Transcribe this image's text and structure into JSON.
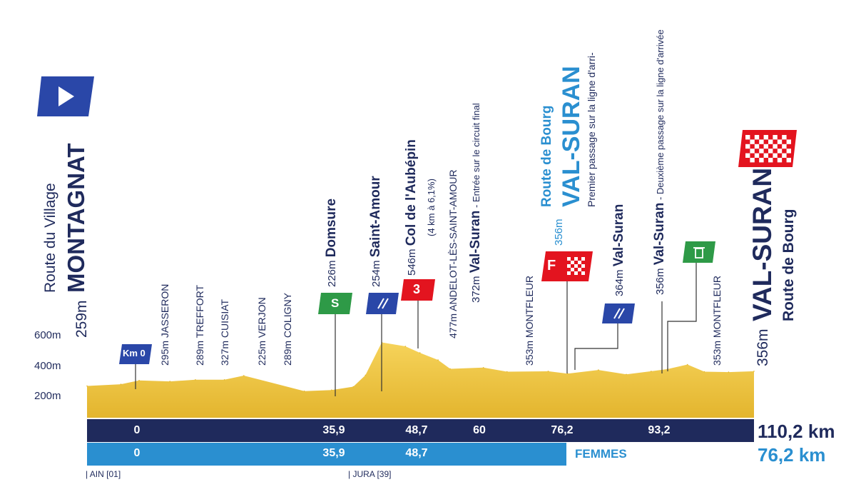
{
  "start": {
    "street": "Route du Village",
    "town": "MONTAGNAT",
    "altitude": "259m"
  },
  "finish": {
    "street": "Route de Bourg",
    "town": "VAL-SURAN",
    "altitude": "356m"
  },
  "axis": {
    "y_ticks": [
      "600m",
      "400m",
      "200m"
    ]
  },
  "km0_badge": "Km 0",
  "sprint_badge": "S",
  "kom_badge": "3",
  "feed_badge": "F",
  "points": [
    {
      "alt": "295m",
      "name": "JASSERON"
    },
    {
      "alt": "289m",
      "name": "TREFFORT"
    },
    {
      "alt": "327m",
      "name": "CUISIAT"
    },
    {
      "alt": "225m",
      "name": "VERJON"
    },
    {
      "alt": "289m",
      "name": "COLIGNY"
    },
    {
      "alt": "226m",
      "name": "Domsure"
    },
    {
      "alt": "254m",
      "name": "Saint-Amour"
    },
    {
      "alt": "546m",
      "name": "Col de l'Aubépin",
      "note": "(4 km à 6,1%)"
    },
    {
      "alt": "477m",
      "name": "ANDELOT-LÈS-SAINT-AMOUR"
    },
    {
      "alt": "372m",
      "name": "Val-Suran",
      "note": " - Entrée sur le circuit final"
    },
    {
      "alt": "353m",
      "name": "MONTFLEUR"
    },
    {
      "alt": "356m",
      "name": "VAL-SURAN",
      "street": "Route de Bourg",
      "note": "Premier passage sur la ligne d'arri-"
    },
    {
      "alt": "364m",
      "name": "Val-Suran"
    },
    {
      "alt": "356m",
      "name": "Val-Suran",
      "note": " - Deuxième passage sur la ligne d'arrivée"
    },
    {
      "alt": "353m",
      "name": "MONTFLEUR"
    }
  ],
  "km_bar_men": {
    "marks": [
      "0",
      "35,9",
      "48,7",
      "60",
      "76,2",
      "93,2"
    ],
    "total": "110,2 km"
  },
  "km_bar_women": {
    "marks": [
      "0",
      "35,9",
      "48,7"
    ],
    "label": "FEMMES",
    "total": "76,2 km"
  },
  "departments": [
    "AIN [01]",
    "JURA [39]"
  ],
  "colors": {
    "navy": "#1f2a5c",
    "blue": "#2a47a8",
    "lightblue": "#2a8fd0",
    "gold": "#f2c94c",
    "green": "#2e9a47",
    "red": "#e3141f"
  },
  "chart_data": {
    "type": "area",
    "x": [
      0,
      5.6,
      8.6,
      13.7,
      17.9,
      22.7,
      25.9,
      35.9,
      40.4,
      44,
      46,
      48.7,
      52.6,
      55,
      58,
      60,
      65.5,
      69.4,
      76.2,
      79.4,
      84.5,
      89.1,
      93.2,
      95.9,
      99.2,
      102,
      106,
      110.2
    ],
    "y": [
      259,
      270,
      295,
      289,
      300,
      300,
      327,
      225,
      232,
      254,
      330,
      546,
      520,
      477,
      430,
      372,
      380,
      353,
      356,
      340,
      364,
      335,
      356,
      370,
      400,
      353,
      350,
      356
    ],
    "xlabel": "",
    "ylabel": "",
    "ylim": [
      100,
      700
    ],
    "xlim": [
      0,
      110.2
    ]
  }
}
